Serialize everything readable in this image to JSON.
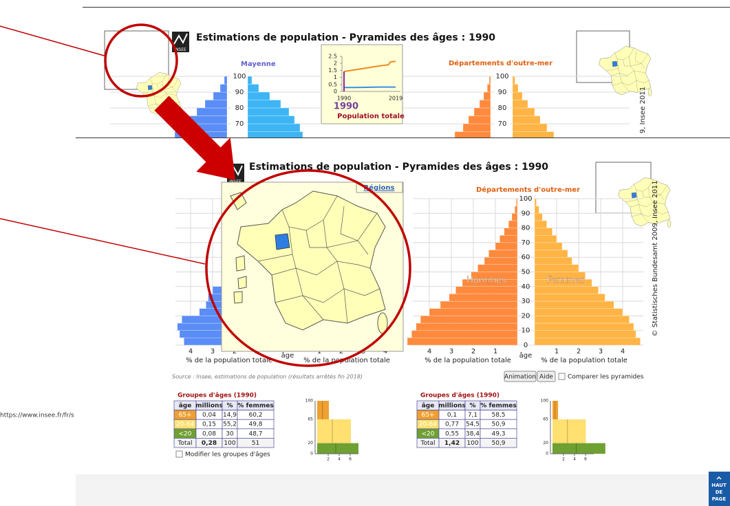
{
  "browser": {
    "url": "https://www.insee.fr/fr/s",
    "back_to_top": [
      "HAUT",
      "DE",
      "PAGE"
    ]
  },
  "logo": "INSEE",
  "top_view": {
    "title": "Estimations de population - Pyramides des âges : 1990",
    "left_label": "Mayenne",
    "right_label": "Départements d'outre-mer",
    "yticks": [
      100,
      90,
      80,
      70
    ],
    "copyright_fragment": "9, Insee 2011",
    "popup": {
      "x": [
        1990,
        1995,
        2000,
        2005,
        2010,
        2015,
        2016,
        2019
      ],
      "xlim": [
        1990,
        2019
      ],
      "xticks": [
        1990,
        2019
      ],
      "ylim": [
        0,
        2.5
      ],
      "yticks": [
        2.5,
        2,
        1.5,
        1,
        0.5,
        0
      ],
      "series": [
        {
          "color": "#f08a1c",
          "values": [
            1.42,
            1.52,
            1.62,
            1.72,
            1.82,
            1.9,
            2.1,
            2.15
          ]
        },
        {
          "color": "#3a8ee6",
          "values": [
            0.28,
            0.28,
            0.29,
            0.3,
            0.31,
            0.31,
            0.31,
            0.31
          ]
        }
      ],
      "year": "1990",
      "label": "Population totale"
    }
  },
  "main_view": {
    "title": "Estimations de population - Pyramides des âges : 1990",
    "map_label": "Régions",
    "right_label": "Départements d'outre-mer",
    "ylim": [
      0,
      100
    ],
    "yticks": [
      0,
      10,
      20,
      30,
      40,
      50,
      60,
      70,
      80,
      90,
      100
    ],
    "xticks": [
      1,
      2,
      3,
      4
    ],
    "age_label": "âge",
    "men_label": "Hommes",
    "women_label": "Femmes",
    "xlabel": "% de la population totale",
    "copyright": "© Statistisches Bundesamt 2009, Insee 2011",
    "pyramids": [
      {
        "men_color": "#5b8df7",
        "women_color": "#3db5f5",
        "men": [
          4.3,
          4.5,
          4.6,
          4.4,
          3.6,
          3.3,
          3.2,
          3.0,
          2.6,
          2.3,
          2.1,
          2.0,
          1.9,
          1.7,
          1.4,
          1.1,
          0.8,
          0.5,
          0.25,
          0.1
        ],
        "women": [
          4.1,
          4.3,
          4.4,
          4.1,
          3.3,
          3.2,
          3.1,
          2.9,
          2.5,
          2.3,
          2.1,
          2.1,
          2.0,
          1.9,
          1.7,
          1.5,
          1.2,
          0.8,
          0.4,
          0.15
        ]
      },
      {
        "men_color": "#ff8a3d",
        "women_color": "#ffb445",
        "men": [
          5.0,
          4.8,
          4.6,
          4.4,
          4.0,
          3.5,
          3.1,
          2.8,
          2.5,
          2.1,
          1.8,
          1.5,
          1.3,
          1.0,
          0.8,
          0.6,
          0.4,
          0.25,
          0.12,
          0.05
        ],
        "women": [
          4.8,
          4.6,
          4.5,
          4.3,
          4.0,
          3.6,
          3.2,
          2.9,
          2.6,
          2.3,
          2.0,
          1.7,
          1.5,
          1.25,
          1.0,
          0.8,
          0.55,
          0.35,
          0.2,
          0.08
        ]
      }
    ],
    "source": "Source : Insee, estimations de population (résultats arrêtés fin 2018)",
    "buttons": [
      "Animation",
      "Aide"
    ],
    "compare_label": "Comparer les pyramides",
    "modify_label": "Modifier les groupes d'âges",
    "row_colors": [
      "#f0a030",
      "#ffe070",
      "#6fa032"
    ],
    "tables": [
      {
        "title": "Groupes d'âges (1990)",
        "header": [
          "âge",
          "millions",
          "%",
          "% femmes"
        ],
        "rows": [
          [
            "65+",
            "0,04",
            "14,9",
            "60,2"
          ],
          [
            "20-64",
            "0,15",
            "55,2",
            "49,8"
          ],
          [
            "<20",
            "0,08",
            "30",
            "48,7"
          ]
        ],
        "total": [
          "Total",
          "0,28",
          "100",
          "51"
        ]
      },
      {
        "title": "Groupes d'âges (1990)",
        "header": [
          "âge",
          "millions",
          "%",
          "% femmes"
        ],
        "rows": [
          [
            "65+",
            "0,1",
            "7,1",
            "58,5"
          ],
          [
            "20-64",
            "0,77",
            "54,5",
            "50,9"
          ],
          [
            "<20",
            "0,55",
            "38,4",
            "49,3"
          ]
        ],
        "total": [
          "Total",
          "1,42",
          "100",
          "50,9"
        ]
      }
    ],
    "mini_chart": {
      "ylim": [
        0,
        100
      ],
      "yticks": [
        100,
        65,
        20,
        0
      ],
      "xticks": [
        2,
        4,
        6
      ]
    }
  }
}
